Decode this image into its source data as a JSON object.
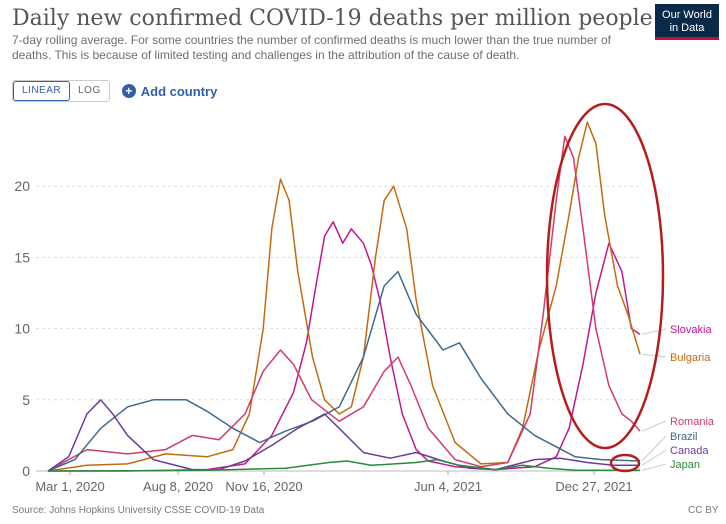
{
  "header": {
    "title": "Daily new confirmed COVID-19 deaths per million people",
    "subtitle": "7-day rolling average. For some countries the number of confirmed deaths is much lower than the true number of deaths. This is because of limited testing and challenges in the attribution of the cause of death.",
    "logo_line1": "Our World",
    "logo_line2": "in Data"
  },
  "controls": {
    "linear_label": "LINEAR",
    "log_label": "LOG",
    "add_country_label": "Add country"
  },
  "footer": {
    "source": "Source: Johns Hopkins University CSSE COVID-19 Data",
    "license": "CC BY"
  },
  "colors": {
    "slovakia": "#c2188f",
    "bulgaria": "#c16c11",
    "romania": "#d23b6b",
    "brazil": "#3f6b8c",
    "canada": "#6c3d96",
    "japan": "#2a8b3c",
    "annotation": "#b51d1d",
    "grid": "#dddddd",
    "axis_text": "#666666"
  },
  "chart_data": {
    "type": "line",
    "title": "Daily new confirmed COVID-19 deaths per million people",
    "xlabel": "",
    "ylabel": "",
    "ylim": [
      0,
      25
    ],
    "yticks": [
      0,
      5,
      10,
      15,
      20
    ],
    "xticks": [
      "Mar 1, 2020",
      "Aug 8, 2020",
      "Nov 16, 2020",
      "Jun 4, 2021",
      "Dec 27, 2021"
    ],
    "grid": true,
    "legend": "right, end of lines",
    "series": [
      {
        "name": "Slovakia",
        "points": [
          [
            "2020-03-01",
            0
          ],
          [
            "2020-06-01",
            0
          ],
          [
            "2020-09-01",
            0.1
          ],
          [
            "2020-10-15",
            0.5
          ],
          [
            "2020-11-15",
            2.5
          ],
          [
            "2020-12-10",
            5.5
          ],
          [
            "2020-12-25",
            9
          ],
          [
            "2021-01-05",
            13
          ],
          [
            "2021-01-15",
            16.5
          ],
          [
            "2021-01-25",
            17.5
          ],
          [
            "2021-02-05",
            16
          ],
          [
            "2021-02-15",
            17
          ],
          [
            "2021-03-01",
            16
          ],
          [
            "2021-03-10",
            14.5
          ],
          [
            "2021-03-20",
            12
          ],
          [
            "2021-04-01",
            8
          ],
          [
            "2021-04-15",
            4
          ],
          [
            "2021-05-01",
            1.5
          ],
          [
            "2021-05-15",
            0.7
          ],
          [
            "2021-06-15",
            0.3
          ],
          [
            "2021-08-01",
            0.1
          ],
          [
            "2021-09-15",
            0.3
          ],
          [
            "2021-10-10",
            1
          ],
          [
            "2021-10-25",
            3
          ],
          [
            "2021-11-10",
            7.5
          ],
          [
            "2021-11-25",
            12.5
          ],
          [
            "2021-12-10",
            16
          ],
          [
            "2021-12-25",
            14
          ],
          [
            "2022-01-05",
            10
          ],
          [
            "2022-01-15",
            9.6
          ]
        ]
      },
      {
        "name": "Bulgaria",
        "points": [
          [
            "2020-03-01",
            0
          ],
          [
            "2020-04-15",
            0.4
          ],
          [
            "2020-06-01",
            0.5
          ],
          [
            "2020-07-15",
            1.2
          ],
          [
            "2020-09-01",
            1
          ],
          [
            "2020-10-01",
            1.5
          ],
          [
            "2020-10-20",
            4
          ],
          [
            "2020-11-05",
            10
          ],
          [
            "2020-11-15",
            17
          ],
          [
            "2020-11-25",
            20.5
          ],
          [
            "2020-12-05",
            19
          ],
          [
            "2020-12-15",
            14
          ],
          [
            "2021-01-01",
            8
          ],
          [
            "2021-01-15",
            5
          ],
          [
            "2021-02-01",
            4
          ],
          [
            "2021-02-15",
            4.5
          ],
          [
            "2021-03-01",
            8
          ],
          [
            "2021-03-15",
            15
          ],
          [
            "2021-03-25",
            19
          ],
          [
            "2021-04-05",
            20
          ],
          [
            "2021-04-20",
            17
          ],
          [
            "2021-05-01",
            12
          ],
          [
            "2021-05-20",
            6
          ],
          [
            "2021-06-15",
            2
          ],
          [
            "2021-07-15",
            0.5
          ],
          [
            "2021-08-15",
            0.6
          ],
          [
            "2021-09-01",
            3
          ],
          [
            "2021-09-20",
            8.5
          ],
          [
            "2021-10-10",
            13
          ],
          [
            "2021-10-25",
            18
          ],
          [
            "2021-11-05",
            22
          ],
          [
            "2021-11-15",
            24.5
          ],
          [
            "2021-11-25",
            23
          ],
          [
            "2021-12-05",
            18
          ],
          [
            "2021-12-20",
            13
          ],
          [
            "2022-01-01",
            11
          ],
          [
            "2022-01-15",
            8.2
          ]
        ]
      },
      {
        "name": "Romania",
        "points": [
          [
            "2020-03-01",
            0
          ],
          [
            "2020-04-15",
            1.5
          ],
          [
            "2020-06-01",
            1.2
          ],
          [
            "2020-07-15",
            1.5
          ],
          [
            "2020-08-15",
            2.5
          ],
          [
            "2020-09-15",
            2.2
          ],
          [
            "2020-10-15",
            4
          ],
          [
            "2020-11-05",
            7
          ],
          [
            "2020-11-25",
            8.5
          ],
          [
            "2020-12-10",
            7.5
          ],
          [
            "2020-12-31",
            5
          ],
          [
            "2021-02-01",
            3.5
          ],
          [
            "2021-03-01",
            4.5
          ],
          [
            "2021-03-25",
            7
          ],
          [
            "2021-04-10",
            8
          ],
          [
            "2021-04-25",
            6
          ],
          [
            "2021-05-15",
            3
          ],
          [
            "2021-06-15",
            0.8
          ],
          [
            "2021-07-15",
            0.3
          ],
          [
            "2021-08-15",
            0.6
          ],
          [
            "2021-09-10",
            4
          ],
          [
            "2021-09-25",
            11
          ],
          [
            "2021-10-10",
            19
          ],
          [
            "2021-10-20",
            23.5
          ],
          [
            "2021-10-30",
            22
          ],
          [
            "2021-11-10",
            17
          ],
          [
            "2021-11-25",
            10
          ],
          [
            "2021-12-10",
            6
          ],
          [
            "2021-12-25",
            4
          ],
          [
            "2022-01-05",
            3.5
          ],
          [
            "2022-01-15",
            2.8
          ]
        ]
      },
      {
        "name": "Brazil",
        "points": [
          [
            "2020-03-01",
            0
          ],
          [
            "2020-04-01",
            0.8
          ],
          [
            "2020-05-01",
            3
          ],
          [
            "2020-06-01",
            4.5
          ],
          [
            "2020-07-01",
            5
          ],
          [
            "2020-08-08",
            5
          ],
          [
            "2020-09-01",
            4.2
          ],
          [
            "2020-10-01",
            3
          ],
          [
            "2020-11-01",
            2
          ],
          [
            "2020-12-01",
            2.8
          ],
          [
            "2021-01-01",
            3.5
          ],
          [
            "2021-02-01",
            4.5
          ],
          [
            "2021-03-01",
            8
          ],
          [
            "2021-03-25",
            13
          ],
          [
            "2021-04-10",
            14
          ],
          [
            "2021-05-01",
            11
          ],
          [
            "2021-06-01",
            8.5
          ],
          [
            "2021-06-20",
            9
          ],
          [
            "2021-07-15",
            6.5
          ],
          [
            "2021-08-15",
            4
          ],
          [
            "2021-09-15",
            2.5
          ],
          [
            "2021-11-01",
            1
          ],
          [
            "2021-12-01",
            0.8
          ],
          [
            "2022-01-15",
            0.7
          ]
        ]
      },
      {
        "name": "Canada",
        "points": [
          [
            "2020-03-01",
            0
          ],
          [
            "2020-03-25",
            1
          ],
          [
            "2020-04-15",
            4
          ],
          [
            "2020-05-01",
            5
          ],
          [
            "2020-05-15",
            4
          ],
          [
            "2020-06-01",
            2.5
          ],
          [
            "2020-07-01",
            0.8
          ],
          [
            "2020-08-15",
            0.1
          ],
          [
            "2020-09-15",
            0.1
          ],
          [
            "2020-10-15",
            0.7
          ],
          [
            "2020-11-15",
            1.8
          ],
          [
            "2020-12-15",
            3
          ],
          [
            "2021-01-15",
            4
          ],
          [
            "2021-02-01",
            3
          ],
          [
            "2021-03-01",
            1.3
          ],
          [
            "2021-04-01",
            0.9
          ],
          [
            "2021-05-01",
            1.3
          ],
          [
            "2021-06-01",
            0.7
          ],
          [
            "2021-07-01",
            0.2
          ],
          [
            "2021-08-01",
            0.1
          ],
          [
            "2021-09-15",
            0.8
          ],
          [
            "2021-10-15",
            0.9
          ],
          [
            "2021-11-15",
            0.6
          ],
          [
            "2021-12-15",
            0.4
          ],
          [
            "2022-01-15",
            0.4
          ]
        ]
      },
      {
        "name": "Japan",
        "points": [
          [
            "2020-03-01",
            0
          ],
          [
            "2020-06-01",
            0.02
          ],
          [
            "2020-09-01",
            0.05
          ],
          [
            "2020-12-01",
            0.2
          ],
          [
            "2021-01-20",
            0.6
          ],
          [
            "2021-02-10",
            0.7
          ],
          [
            "2021-03-10",
            0.4
          ],
          [
            "2021-05-01",
            0.6
          ],
          [
            "2021-05-25",
            0.8
          ],
          [
            "2021-06-20",
            0.4
          ],
          [
            "2021-08-01",
            0.1
          ],
          [
            "2021-09-01",
            0.4
          ],
          [
            "2021-10-01",
            0.2
          ],
          [
            "2021-11-01",
            0.05
          ],
          [
            "2022-01-15",
            0.05
          ]
        ]
      }
    ]
  }
}
